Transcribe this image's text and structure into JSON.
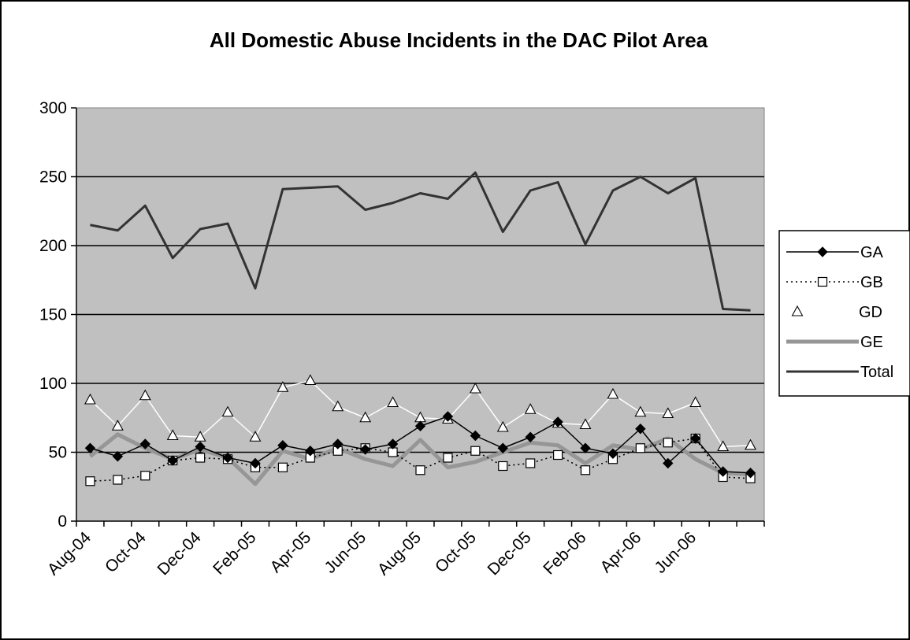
{
  "chart_data": {
    "type": "line",
    "title": "All Domestic Abuse Incidents in the DAC Pilot Area",
    "xlabel": "",
    "ylabel": "",
    "ylim": [
      0,
      300
    ],
    "yticks": [
      0,
      50,
      100,
      150,
      200,
      250,
      300
    ],
    "grid": true,
    "legend_position": "right",
    "colors": {
      "plot_background": "#c0c0c0",
      "gridline": "#000000",
      "GA": "#000000",
      "GB": "#000000",
      "GD": "#ffffff",
      "GE": "#969696",
      "Total": "#333333"
    },
    "categories": [
      "Aug-04",
      "Sep-04",
      "Oct-04",
      "Nov-04",
      "Dec-04",
      "Jan-05",
      "Feb-05",
      "Mar-05",
      "Apr-05",
      "May-05",
      "Jun-05",
      "Jul-05",
      "Aug-05",
      "Sep-05",
      "Oct-05",
      "Nov-05",
      "Dec-05",
      "Jan-06",
      "Feb-06",
      "Mar-06",
      "Apr-06",
      "May-06",
      "Jun-06",
      "Jul-06",
      "Aug-06"
    ],
    "xtick_labels": [
      "Aug-04",
      "Oct-04",
      "Dec-04",
      "Feb-05",
      "Apr-05",
      "Jun-05",
      "Aug-05",
      "Oct-05",
      "Dec-05",
      "Feb-06",
      "Apr-06",
      "Jun-06"
    ],
    "series": [
      {
        "name": "GA",
        "marker": "diamond",
        "line": "solid",
        "values": [
          53,
          47,
          56,
          44,
          54,
          46,
          42,
          55,
          51,
          56,
          52,
          56,
          69,
          76,
          62,
          53,
          61,
          72,
          53,
          49,
          67,
          42,
          60,
          36,
          35
        ]
      },
      {
        "name": "GB",
        "marker": "square",
        "line": "dotted",
        "values": [
          29,
          30,
          33,
          44,
          46,
          45,
          39,
          39,
          46,
          51,
          53,
          50,
          37,
          46,
          51,
          40,
          42,
          48,
          37,
          45,
          53,
          57,
          60,
          32,
          31
        ]
      },
      {
        "name": "GD",
        "marker": "triangle",
        "line": "solid",
        "values": [
          88,
          69,
          91,
          62,
          61,
          79,
          61,
          97,
          102,
          83,
          75,
          86,
          75,
          74,
          96,
          68,
          81,
          71,
          70,
          92,
          79,
          78,
          86,
          54,
          55
        ]
      },
      {
        "name": "GE",
        "marker": "none",
        "line": "thick",
        "values": [
          47,
          63,
          53,
          45,
          52,
          46,
          27,
          51,
          45,
          53,
          45,
          40,
          59,
          39,
          43,
          50,
          57,
          55,
          42,
          55,
          52,
          60,
          45,
          35,
          34
        ]
      },
      {
        "name": "Total",
        "marker": "none",
        "line": "solid",
        "values": [
          215,
          211,
          229,
          191,
          212,
          216,
          169,
          241,
          242,
          243,
          226,
          231,
          238,
          234,
          253,
          210,
          240,
          246,
          201,
          240,
          250,
          238,
          249,
          154,
          153
        ]
      }
    ]
  }
}
